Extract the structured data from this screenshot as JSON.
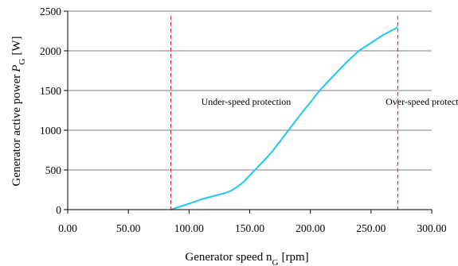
{
  "chart_data": {
    "type": "line",
    "xlabel": "Generator speed n",
    "xlabel_sub": "G",
    "xlabel_unit": "[rpm]",
    "ylabel": "Generator active power",
    "ylabel_symbol": "P",
    "ylabel_sub": "G",
    "ylabel_unit": "[W]",
    "xlim": [
      0,
      300
    ],
    "ylim": [
      0,
      2500
    ],
    "x_ticks": [
      0,
      50,
      100,
      150,
      200,
      250,
      300
    ],
    "x_tick_labels": [
      "0.00",
      "50.00",
      "100.00",
      "150.00",
      "200.00",
      "250.00",
      "300.00"
    ],
    "y_ticks": [
      0,
      500,
      1000,
      1500,
      2000,
      2500
    ],
    "y_tick_labels": [
      "0",
      "500",
      "1000",
      "1500",
      "2000",
      "2500"
    ],
    "grid": "horizontal",
    "series": [
      {
        "color": "#1EC8F0",
        "x": [
          85,
          90,
          95,
          100,
          105,
          110,
          115,
          120,
          125,
          130,
          135,
          140,
          145,
          150,
          155,
          160,
          165,
          170,
          175,
          180,
          185,
          190,
          195,
          200,
          205,
          210,
          215,
          220,
          225,
          230,
          235,
          240,
          245,
          250,
          255,
          260,
          265,
          270,
          272
        ],
        "y": [
          0,
          25,
          50,
          75,
          100,
          130,
          150,
          170,
          190,
          210,
          240,
          290,
          350,
          430,
          510,
          590,
          670,
          760,
          860,
          960,
          1060,
          1160,
          1260,
          1350,
          1450,
          1540,
          1620,
          1700,
          1780,
          1860,
          1930,
          2000,
          2050,
          2100,
          2150,
          2200,
          2240,
          2280,
          2300
        ]
      }
    ],
    "vlines": [
      {
        "x": 85,
        "color": "#D62728",
        "style": "dashed"
      },
      {
        "x": 272,
        "color": "#D62728",
        "style": "dashed"
      }
    ],
    "annotations": [
      {
        "text": "Under-speed protection",
        "x": 110,
        "y": 1320
      },
      {
        "text": "Over-speed protection",
        "x": 262,
        "y": 1320
      }
    ]
  }
}
